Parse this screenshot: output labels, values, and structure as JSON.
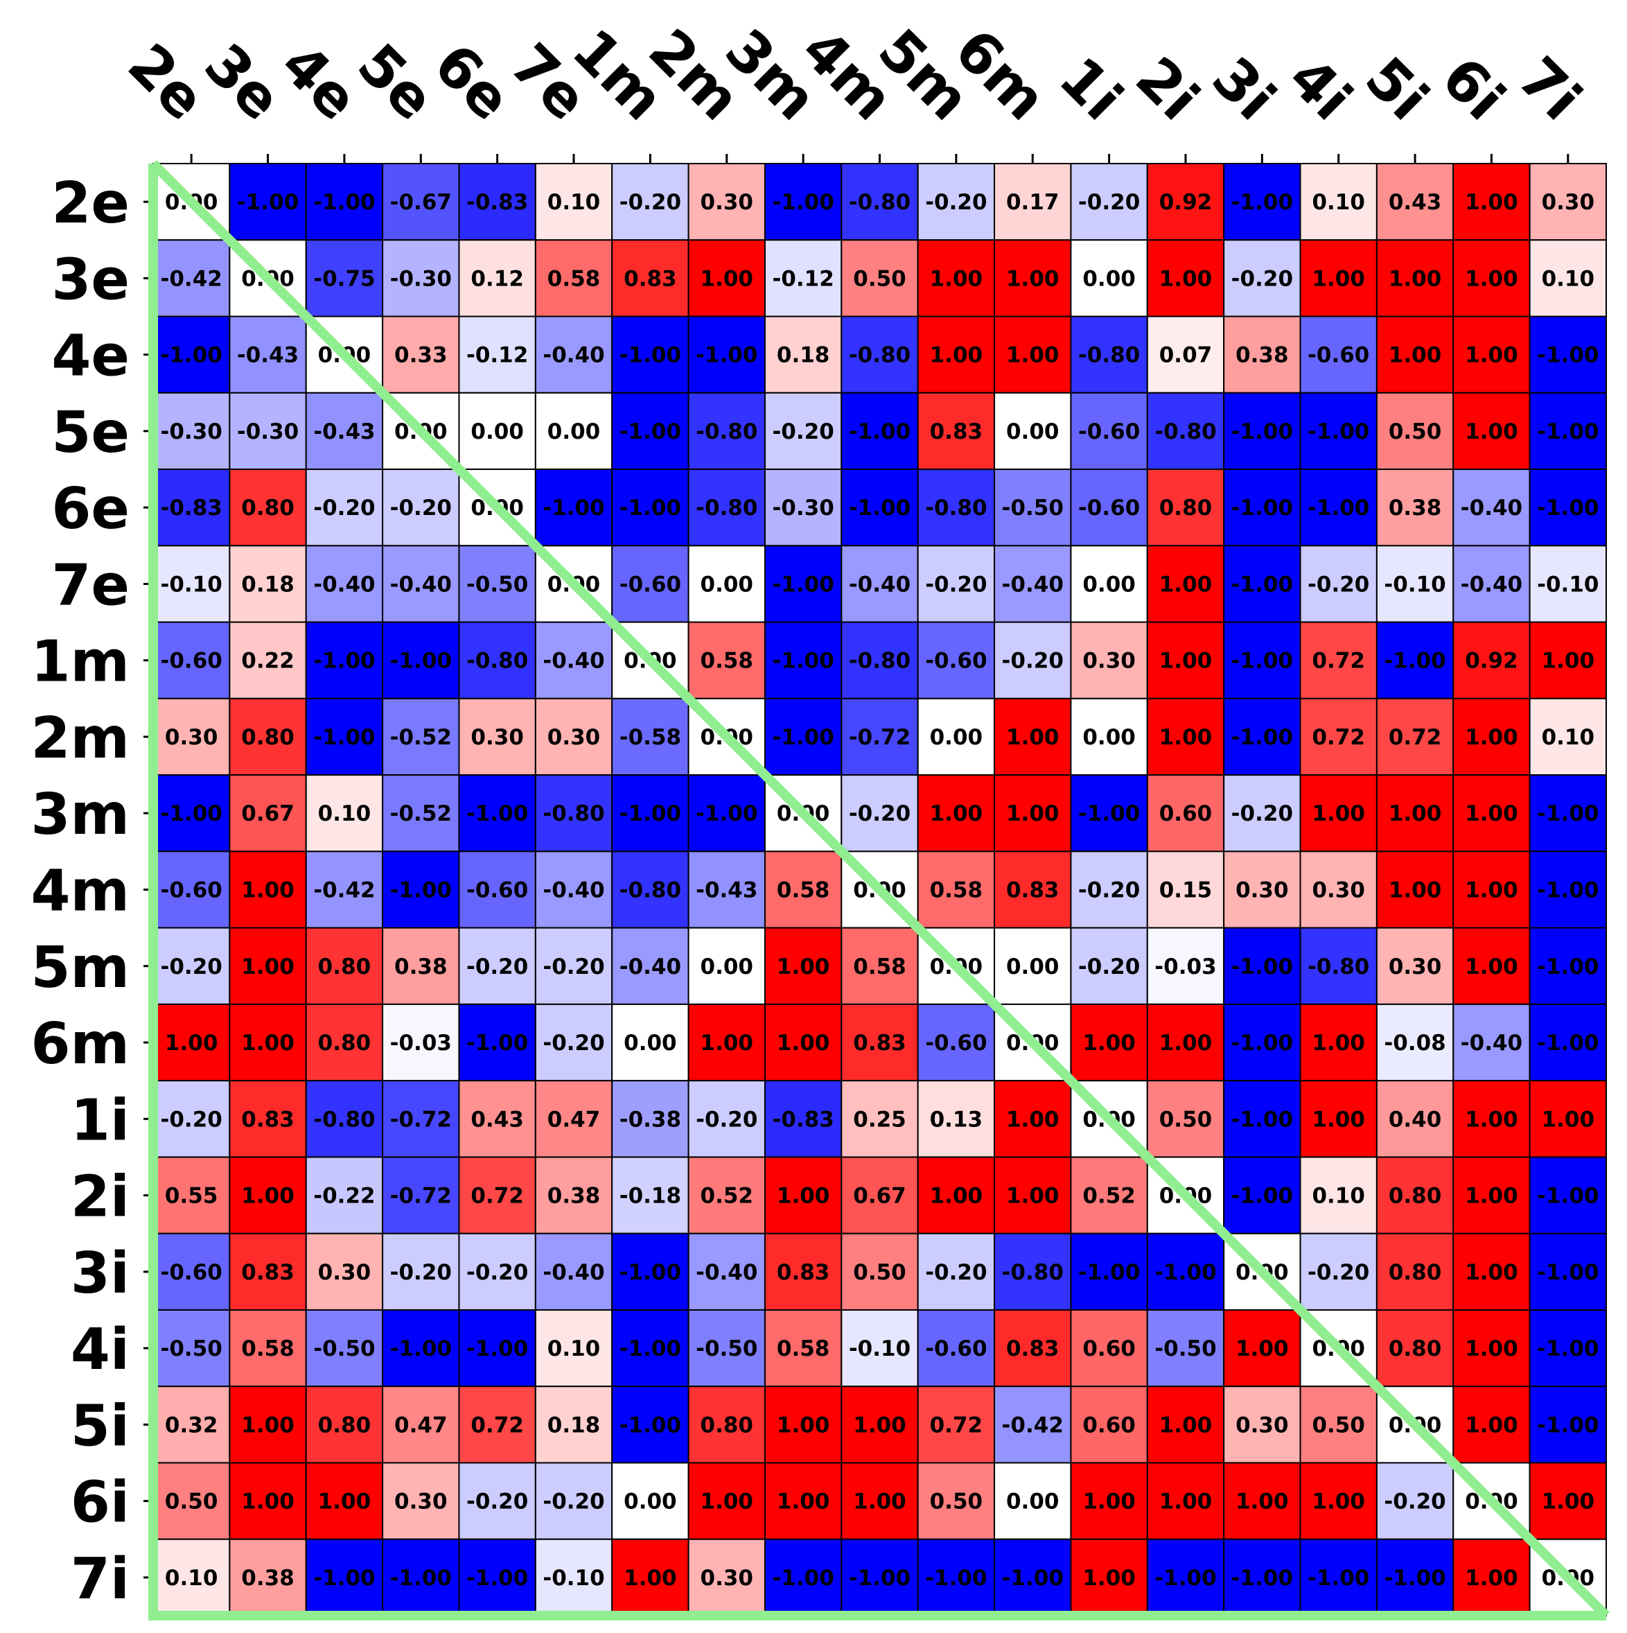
{
  "chart_data": {
    "type": "heatmap",
    "title": "",
    "xlabel": "",
    "ylabel": "",
    "x_labels": [
      "2e",
      "3e",
      "4e",
      "5e",
      "6e",
      "7e",
      "1m",
      "2m",
      "3m",
      "4m",
      "5m",
      "6m",
      "1i",
      "2i",
      "3i",
      "4i",
      "5i",
      "6i",
      "7i"
    ],
    "y_labels": [
      "2e",
      "3e",
      "4e",
      "5e",
      "6e",
      "7e",
      "1m",
      "2m",
      "3m",
      "4m",
      "5m",
      "6m",
      "1i",
      "2i",
      "3i",
      "4i",
      "5i",
      "6i",
      "7i"
    ],
    "value_range": [
      -1,
      1
    ],
    "colormap": "bwr",
    "colors": {
      "low": "#0000ff",
      "mid": "#ffffff",
      "high": "#ff0000",
      "diagonal": "#90ee90",
      "grid": "#000000"
    },
    "diagonal_line": true,
    "values": [
      [
        0.0,
        -1.0,
        -1.0,
        -0.67,
        -0.83,
        0.1,
        -0.2,
        0.3,
        -1.0,
        -0.8,
        -0.2,
        0.17,
        -0.2,
        0.92,
        -1.0,
        0.1,
        0.43,
        1.0,
        0.3
      ],
      [
        -0.42,
        0.0,
        -0.75,
        -0.3,
        0.12,
        0.58,
        0.83,
        1.0,
        -0.12,
        0.5,
        1.0,
        1.0,
        0.0,
        1.0,
        -0.2,
        1.0,
        1.0,
        1.0,
        0.1
      ],
      [
        -1.0,
        -0.43,
        0.0,
        0.33,
        -0.12,
        -0.4,
        -1.0,
        -1.0,
        0.18,
        -0.8,
        1.0,
        1.0,
        -0.8,
        0.07,
        0.38,
        -0.6,
        1.0,
        1.0,
        -1.0
      ],
      [
        -0.3,
        -0.3,
        -0.43,
        0.0,
        0.0,
        0.0,
        -1.0,
        -0.8,
        -0.2,
        -1.0,
        0.83,
        0.0,
        -0.6,
        -0.8,
        -1.0,
        -1.0,
        0.5,
        1.0,
        -1.0
      ],
      [
        -0.83,
        0.8,
        -0.2,
        -0.2,
        0.0,
        -1.0,
        -1.0,
        -0.8,
        -0.3,
        -1.0,
        -0.8,
        -0.5,
        -0.6,
        0.8,
        -1.0,
        -1.0,
        0.38,
        -0.4,
        -1.0
      ],
      [
        -0.1,
        0.18,
        -0.4,
        -0.4,
        -0.5,
        0.0,
        -0.6,
        0.0,
        -1.0,
        -0.4,
        -0.2,
        -0.4,
        0.0,
        1.0,
        -1.0,
        -0.2,
        -0.1,
        -0.4,
        -0.1
      ],
      [
        -0.6,
        0.22,
        -1.0,
        -1.0,
        -0.8,
        -0.4,
        0.0,
        0.58,
        -1.0,
        -0.8,
        -0.6,
        -0.2,
        0.3,
        1.0,
        -1.0,
        0.72,
        -1.0,
        0.92,
        1.0
      ],
      [
        0.3,
        0.8,
        -1.0,
        -0.52,
        0.3,
        0.3,
        -0.58,
        0.0,
        -1.0,
        -0.72,
        0.0,
        1.0,
        0.0,
        1.0,
        -1.0,
        0.72,
        0.72,
        1.0,
        0.1
      ],
      [
        -1.0,
        0.67,
        0.1,
        -0.52,
        -1.0,
        -0.8,
        -1.0,
        -1.0,
        0.0,
        -0.2,
        1.0,
        1.0,
        -1.0,
        0.6,
        -0.2,
        1.0,
        1.0,
        1.0,
        -1.0
      ],
      [
        -0.6,
        1.0,
        -0.42,
        -1.0,
        -0.6,
        -0.4,
        -0.8,
        -0.43,
        0.58,
        0.0,
        0.58,
        0.83,
        -0.2,
        0.15,
        0.3,
        0.3,
        1.0,
        1.0,
        -1.0
      ],
      [
        -0.2,
        1.0,
        0.8,
        0.38,
        -0.2,
        -0.2,
        -0.4,
        0.0,
        1.0,
        0.58,
        0.0,
        0.0,
        -0.2,
        -0.03,
        -1.0,
        -0.8,
        0.3,
        1.0,
        -1.0
      ],
      [
        1.0,
        1.0,
        0.8,
        -0.03,
        -1.0,
        -0.2,
        0.0,
        1.0,
        1.0,
        0.83,
        -0.6,
        0.0,
        1.0,
        1.0,
        -1.0,
        1.0,
        -0.08,
        -0.4,
        -1.0
      ],
      [
        -0.2,
        0.83,
        -0.8,
        -0.72,
        0.43,
        0.47,
        -0.38,
        -0.2,
        -0.83,
        0.25,
        0.13,
        1.0,
        0.0,
        0.5,
        -1.0,
        1.0,
        0.4,
        1.0,
        1.0
      ],
      [
        0.55,
        1.0,
        -0.22,
        -0.72,
        0.72,
        0.38,
        -0.18,
        0.52,
        1.0,
        0.67,
        1.0,
        1.0,
        0.52,
        0.0,
        -1.0,
        0.1,
        0.8,
        1.0,
        -1.0
      ],
      [
        -0.6,
        0.83,
        0.3,
        -0.2,
        -0.2,
        -0.4,
        -1.0,
        -0.4,
        0.83,
        0.5,
        -0.2,
        -0.8,
        -1.0,
        -1.0,
        0.0,
        -0.2,
        0.8,
        1.0,
        -1.0
      ],
      [
        -0.5,
        0.58,
        -0.5,
        -1.0,
        -1.0,
        0.1,
        -1.0,
        -0.5,
        0.58,
        -0.1,
        -0.6,
        0.83,
        0.6,
        -0.5,
        1.0,
        0.0,
        0.8,
        1.0,
        -1.0
      ],
      [
        0.32,
        1.0,
        0.8,
        0.47,
        0.72,
        0.18,
        -1.0,
        0.8,
        1.0,
        1.0,
        0.72,
        -0.42,
        0.6,
        1.0,
        0.3,
        0.5,
        0.0,
        1.0,
        -1.0
      ],
      [
        0.5,
        1.0,
        1.0,
        0.3,
        -0.2,
        -0.2,
        0.0,
        1.0,
        1.0,
        1.0,
        0.5,
        0.0,
        1.0,
        1.0,
        1.0,
        1.0,
        -0.2,
        0.0,
        1.0
      ],
      [
        0.1,
        0.38,
        -1.0,
        -1.0,
        -1.0,
        -0.1,
        1.0,
        0.3,
        -1.0,
        -1.0,
        -1.0,
        -1.0,
        1.0,
        -1.0,
        -1.0,
        -1.0,
        -1.0,
        1.0,
        0.0
      ]
    ]
  }
}
